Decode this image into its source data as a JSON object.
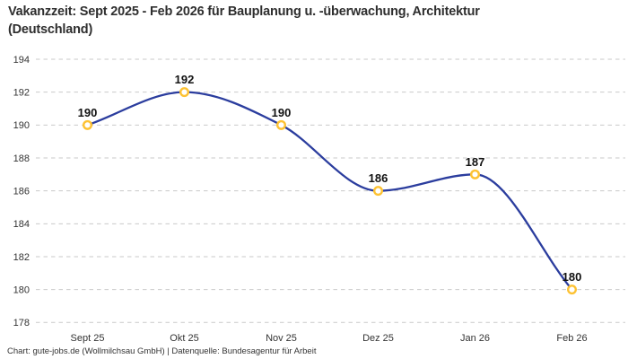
{
  "chart_data": {
    "type": "line",
    "title": "Vakanzzeit: Sept 2025 - Feb 2026 für Bauplanung u. -überwachung, Architektur\n(Deutschland)",
    "source": "Chart: gute-jobs.de (Wollmilchsau GmbH) | Datenquelle: Bundesagentur für Arbeit",
    "categories": [
      "Sept 25",
      "Okt 25",
      "Nov 25",
      "Dez 25",
      "Jan 26",
      "Feb 26"
    ],
    "values": [
      190,
      192,
      190,
      186,
      187,
      180
    ],
    "xlabel": "",
    "ylabel": "",
    "ylim": [
      178,
      194
    ],
    "ytick_step": 2,
    "grid": "horizontal-dashed",
    "legend": "none",
    "curve": "monotone",
    "colors": {
      "line": "#2b3d9e",
      "marker_stroke": "#fdc233",
      "marker_fill": "#ffffff",
      "grid": "#c9c9c9",
      "data_label": "#111111",
      "tick_label": "#333333",
      "title": "#2e2e2e"
    }
  }
}
